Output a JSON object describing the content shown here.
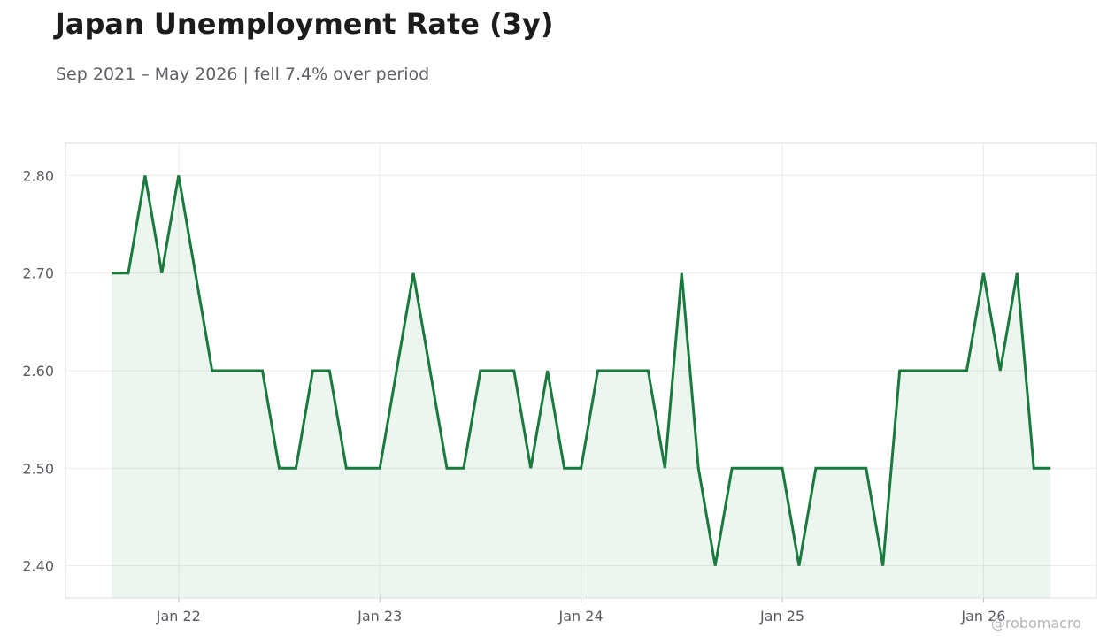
{
  "header": {
    "title": "Japan Unemployment Rate (3y)",
    "subtitle": "Sep 2021 – May 2026 | fell 7.4% over period"
  },
  "watermark": "@robomacro",
  "colors": {
    "line": "#1a7a3e",
    "area_fill": "#1a7a3e",
    "grid": "#ebebeb",
    "frame": "#dddddd",
    "tick_text": "#5a5c63"
  },
  "chart_data": {
    "type": "area",
    "title": "Japan Unemployment Rate (3y)",
    "xlabel": "",
    "ylabel": "",
    "x_start": "2021-09",
    "x_end": "2026-05",
    "ylim": [
      2.367,
      2.833
    ],
    "yticks": [
      2.4,
      2.5,
      2.6,
      2.7,
      2.8
    ],
    "ytick_labels": [
      "2.40",
      "2.50",
      "2.60",
      "2.70",
      "2.80"
    ],
    "xticks": [
      "2022-01",
      "2023-01",
      "2024-01",
      "2025-01",
      "2026-01"
    ],
    "xtick_labels": [
      "Jan 22",
      "Jan 23",
      "Jan 24",
      "Jan 25",
      "Jan 26"
    ],
    "grid": true,
    "legend": "none",
    "series": [
      {
        "x": [
          "2021-09",
          "2021-10",
          "2021-11",
          "2021-12",
          "2022-01",
          "2022-02",
          "2022-03",
          "2022-04",
          "2022-05",
          "2022-06",
          "2022-07",
          "2022-08",
          "2022-09",
          "2022-10",
          "2022-11",
          "2022-12",
          "2023-01",
          "2023-02",
          "2023-03",
          "2023-04",
          "2023-05",
          "2023-06",
          "2023-07",
          "2023-08",
          "2023-09",
          "2023-10",
          "2023-11",
          "2023-12",
          "2024-01",
          "2024-02",
          "2024-03",
          "2024-04",
          "2024-05",
          "2024-06",
          "2024-07",
          "2024-08",
          "2024-09",
          "2024-10",
          "2024-11",
          "2024-12",
          "2025-01",
          "2025-02",
          "2025-03",
          "2025-04",
          "2025-05",
          "2025-06",
          "2025-07",
          "2025-08",
          "2025-09",
          "2025-10",
          "2025-11",
          "2025-12",
          "2026-01",
          "2026-02",
          "2026-03",
          "2026-04",
          "2026-05"
        ],
        "values": [
          2.7,
          2.7,
          2.8,
          2.7,
          2.8,
          2.7,
          2.6,
          2.6,
          2.6,
          2.6,
          2.5,
          2.5,
          2.6,
          2.6,
          2.5,
          2.5,
          2.5,
          2.6,
          2.7,
          2.6,
          2.5,
          2.5,
          2.6,
          2.6,
          2.6,
          2.5,
          2.6,
          2.5,
          2.5,
          2.6,
          2.6,
          2.6,
          2.6,
          2.5,
          2.7,
          2.5,
          2.4,
          2.5,
          2.5,
          2.5,
          2.5,
          2.4,
          2.5,
          2.5,
          2.5,
          2.5,
          2.4,
          2.6,
          2.6,
          2.6,
          2.6,
          2.6,
          2.7,
          2.6,
          2.7,
          2.5,
          2.5
        ]
      }
    ]
  }
}
